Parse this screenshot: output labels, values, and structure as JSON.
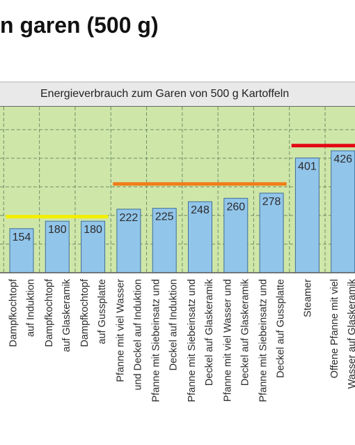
{
  "heading": "n garen (500 g)",
  "chart_data": {
    "type": "bar",
    "title": "Energieverbrauch zum Garen von 500 g Kartoffeln",
    "xlabel": "",
    "ylabel": "",
    "ylim": [
      0,
      580
    ],
    "grid": true,
    "colors": {
      "plot_background": "#cfe6a9",
      "bar": "#92c5ea",
      "bar_edge": "#3c6e96",
      "grid": "#6f8f64",
      "yellow_line": "#f2ef00",
      "orange_line": "#f07d18",
      "red_line": "#e30613"
    },
    "categories": [
      [
        "Dampfkochtopf",
        "auf Induktion"
      ],
      [
        "Dampfkochtopf",
        "auf Glaskeramik"
      ],
      [
        "Dampfkochtopf",
        "auf Gussplatte"
      ],
      [
        "Pfanne mit viel Wasser",
        "und Deckel auf Induktion"
      ],
      [
        "Pfanne mit Siebeinsatz und",
        "Deckel auf Induktion"
      ],
      [
        "Pfanne mit Siebeinsatz und",
        "Deckel auf Glaskeramik"
      ],
      [
        "Pfanne mit viel Wasser und",
        "Deckel auf Glaskeramik"
      ],
      [
        "Pfanne mit Siebeinsatz und",
        "Deckel auf Gussplatte"
      ],
      [
        "Steamer"
      ],
      [
        "Offene Pfanne mit viel",
        "Wasser auf Glaskeramik"
      ]
    ],
    "values": [
      154,
      180,
      180,
      222,
      225,
      248,
      260,
      278,
      401,
      426
    ],
    "group_lines": [
      {
        "color": "yellow",
        "from_category": 0,
        "to_category": 2,
        "level": 196
      },
      {
        "color": "orange",
        "from_category": 3,
        "to_category": 7,
        "level": 310
      },
      {
        "color": "red",
        "from_category": 8,
        "to_category": 9,
        "level": 444
      }
    ]
  }
}
